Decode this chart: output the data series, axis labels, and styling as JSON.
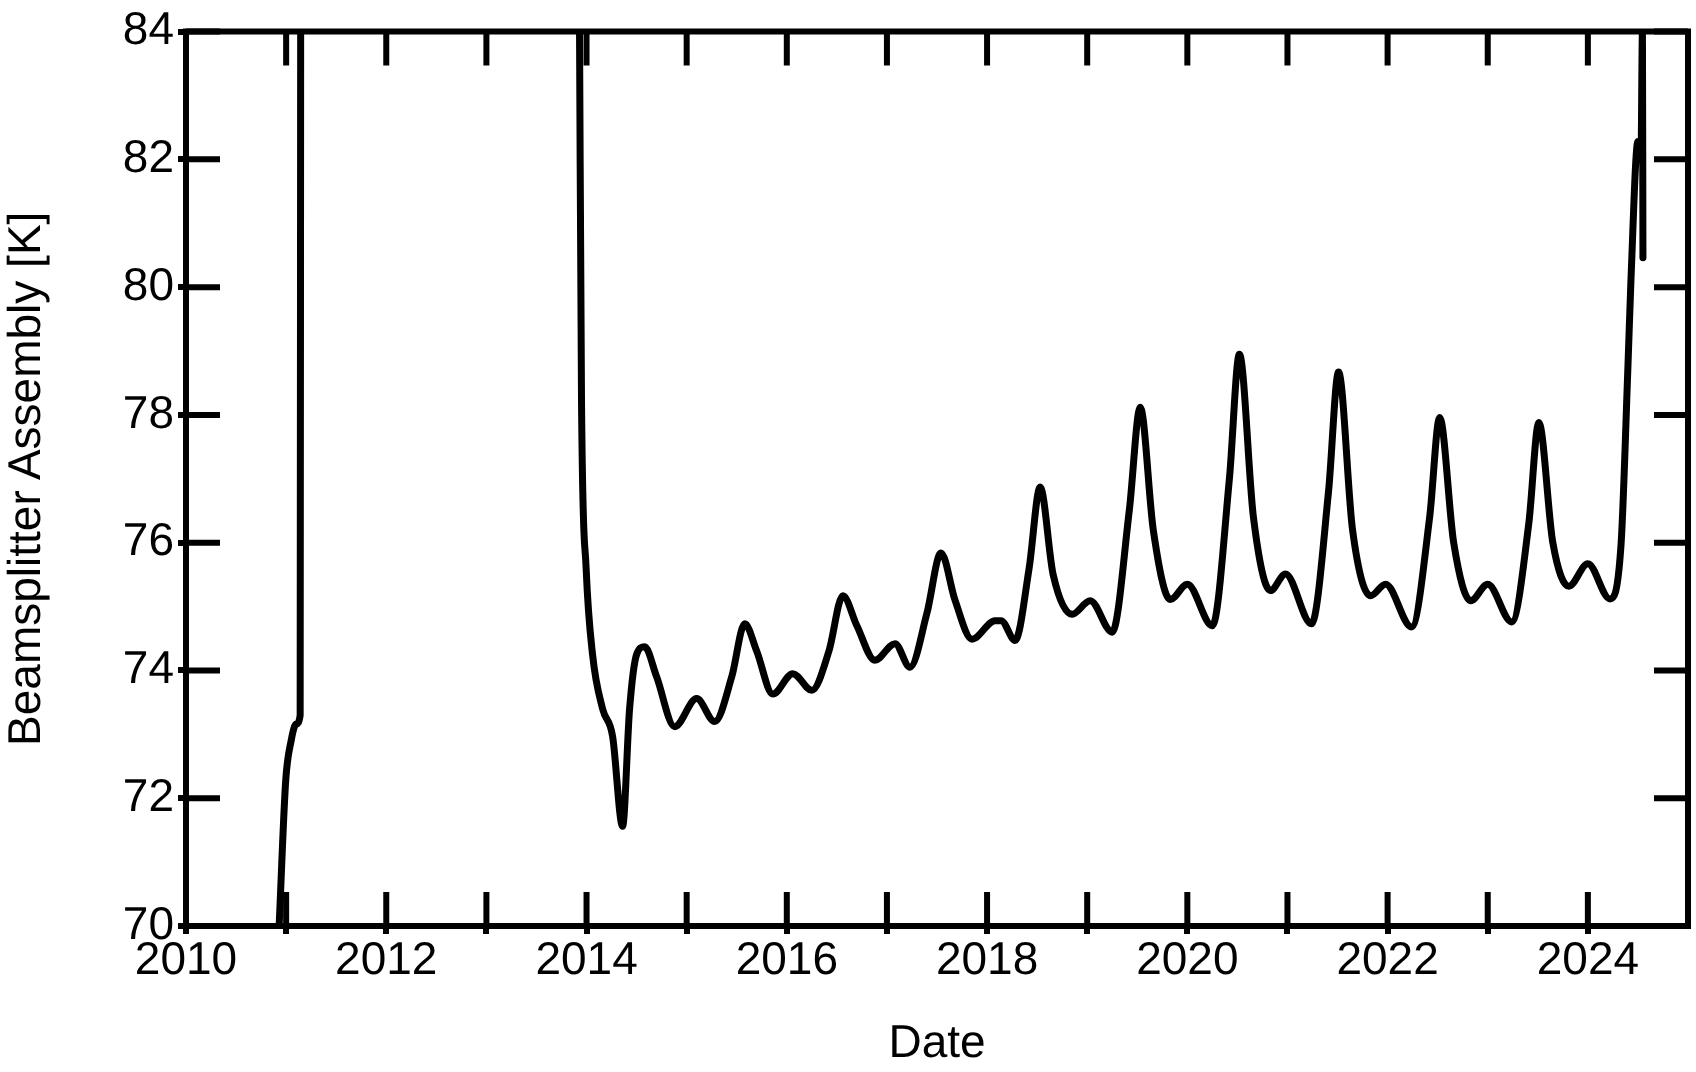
{
  "chart_data": {
    "type": "line",
    "xlabel": "Date",
    "ylabel": "Beamsplitter Assembly [K]",
    "xlim": [
      2010,
      2025
    ],
    "ylim": [
      70,
      84
    ],
    "xticks": [
      2010,
      {
        "value": 2011,
        "label": null
      },
      2012,
      {
        "value": 2013,
        "label": null
      },
      2014,
      {
        "value": 2015,
        "label": null
      },
      2016,
      {
        "value": 2017,
        "label": null
      },
      2018,
      {
        "value": 2019,
        "label": null
      },
      2020,
      {
        "value": 2021,
        "label": null
      },
      2022,
      {
        "value": 2023,
        "label": null
      },
      2024
    ],
    "yticks": [
      70,
      72,
      74,
      76,
      78,
      80,
      82,
      84
    ],
    "grid": false,
    "legend": false,
    "marker": "none",
    "line_style": "solid",
    "x": [
      2010.93,
      2010.996,
      2011.05,
      2011.1,
      2011.14,
      2011.145,
      2011.15,
      2013.93,
      2013.95,
      2013.996,
      2014.06,
      2014.16,
      2014.26,
      2014.36,
      2014.43,
      2014.5,
      2014.58,
      2014.7,
      2014.88,
      2015.1,
      2015.28,
      2015.45,
      2015.58,
      2015.7,
      2015.86,
      2016.06,
      2016.25,
      2016.42,
      2016.56,
      2016.7,
      2016.88,
      2017.08,
      2017.23,
      2017.4,
      2017.54,
      2017.68,
      2017.85,
      2018.08,
      2018.14,
      2018.28,
      2018.42,
      2018.53,
      2018.66,
      2018.85,
      2019.03,
      2019.25,
      2019.42,
      2019.53,
      2019.66,
      2019.83,
      2020.0,
      2020.25,
      2020.42,
      2020.52,
      2020.66,
      2020.83,
      2020.98,
      2021.24,
      2021.41,
      2021.51,
      2021.65,
      2021.83,
      2021.98,
      2022.24,
      2022.42,
      2022.52,
      2022.66,
      2022.83,
      2023.0,
      2023.24,
      2023.41,
      2023.51,
      2023.65,
      2023.81,
      2024.0,
      2024.22,
      2024.33,
      2024.4,
      2024.43,
      2024.5,
      2024.53,
      2024.545,
      2024.55
    ],
    "series": [
      {
        "color": "#000000",
        "values": [
          70,
          72.28,
          72.9,
          73.16,
          73.3,
          84,
          null,
          84,
          78.2,
          75.6,
          74.25,
          73.4,
          72.97,
          71.56,
          73.4,
          74.25,
          74.37,
          73.9,
          73.12,
          73.56,
          73.2,
          73.9,
          74.73,
          74.3,
          73.63,
          73.95,
          73.69,
          74.3,
          75.17,
          74.7,
          74.16,
          74.42,
          74.05,
          74.9,
          75.84,
          75.1,
          74.49,
          74.78,
          74.78,
          74.47,
          75.6,
          76.87,
          75.5,
          74.88,
          75.09,
          74.6,
          76.5,
          78.12,
          76.2,
          75.11,
          75.35,
          74.7,
          77.0,
          78.95,
          76.4,
          75.25,
          75.51,
          74.73,
          76.8,
          78.67,
          76.2,
          75.17,
          75.35,
          74.68,
          76.4,
          77.96,
          76.0,
          75.09,
          75.35,
          74.76,
          76.3,
          77.88,
          76.0,
          75.32,
          75.67,
          75.12,
          75.94,
          78.75,
          80.1,
          82.28,
          82.0,
          84,
          80.46
        ]
      }
    ]
  }
}
